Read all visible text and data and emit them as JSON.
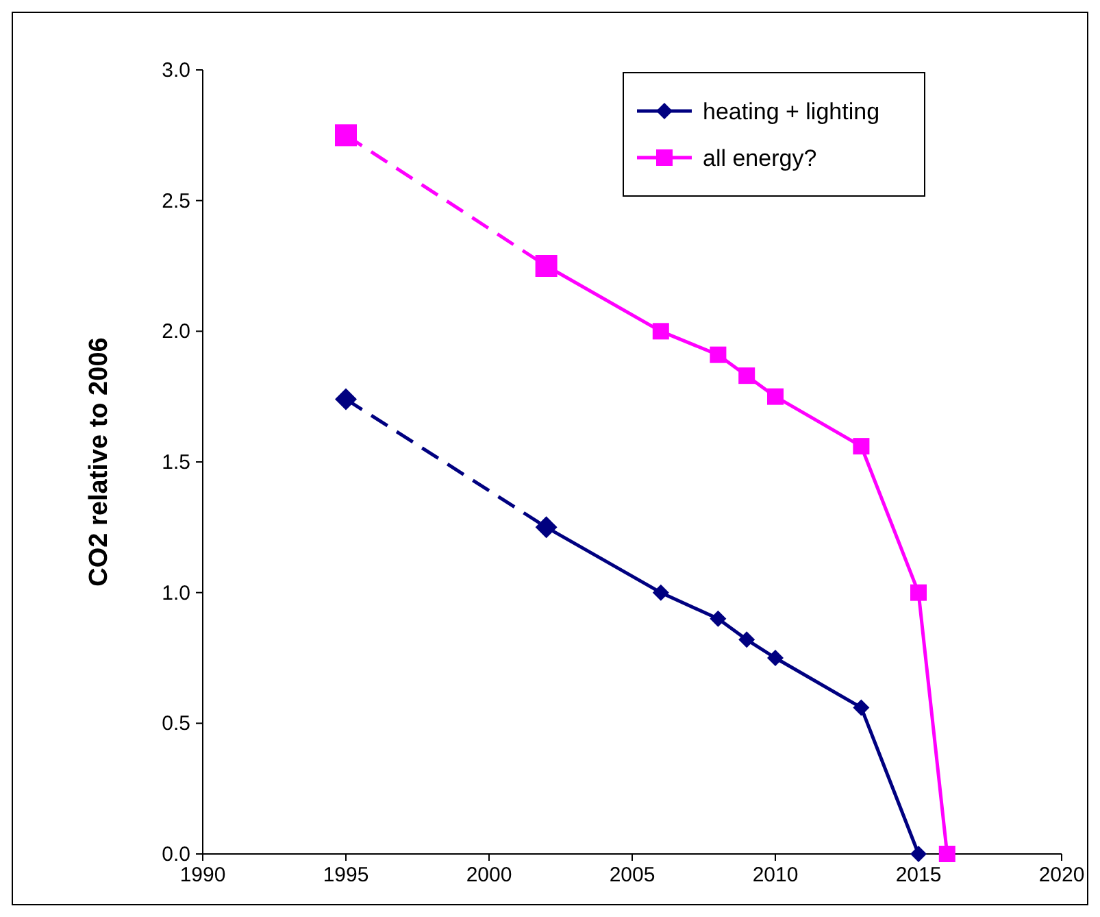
{
  "chart_data": {
    "type": "line",
    "ylabel": "CO2 relative to 2006",
    "xlim": [
      1990,
      2020
    ],
    "xticks": [
      1990,
      1995,
      2000,
      2005,
      2010,
      2015,
      2020
    ],
    "ylim": [
      0,
      3
    ],
    "yticks": [
      {
        "value": 0,
        "label": "0.0"
      },
      {
        "value": 0.5,
        "label": "0.5"
      },
      {
        "value": 1,
        "label": "1.0"
      },
      {
        "value": 1.5,
        "label": "1.5"
      },
      {
        "value": 2,
        "label": "2.0"
      },
      {
        "value": 2.5,
        "label": "2.5"
      },
      {
        "value": 3,
        "label": "3.0"
      }
    ],
    "grid": false,
    "legend": "top right",
    "series": [
      {
        "color": "#000080",
        "marker": "diamond",
        "line_style": "dashed",
        "x": [
          1995,
          2002
        ],
        "values": [
          1.74,
          1.25
        ]
      },
      {
        "name": "heating + lighting",
        "color": "#000080",
        "marker": "diamond",
        "line_style": "solid",
        "x": [
          2002,
          2006,
          2008,
          2009,
          2010,
          2013,
          2015
        ],
        "values": [
          1.25,
          1.0,
          0.9,
          0.82,
          0.75,
          0.56,
          0
        ]
      },
      {
        "color": "#ff00ff",
        "marker": "square",
        "line_style": "dashed",
        "x": [
          1995,
          2002
        ],
        "values": [
          2.75,
          2.25
        ]
      },
      {
        "name": "all energy?",
        "color": "#ff00ff",
        "marker": "square",
        "line_style": "solid",
        "x": [
          2002,
          2006,
          2008,
          2009,
          2010,
          2013,
          2015,
          2016
        ],
        "values": [
          2.25,
          2.0,
          1.91,
          1.83,
          1.75,
          1.56,
          1.0,
          0
        ]
      }
    ]
  }
}
